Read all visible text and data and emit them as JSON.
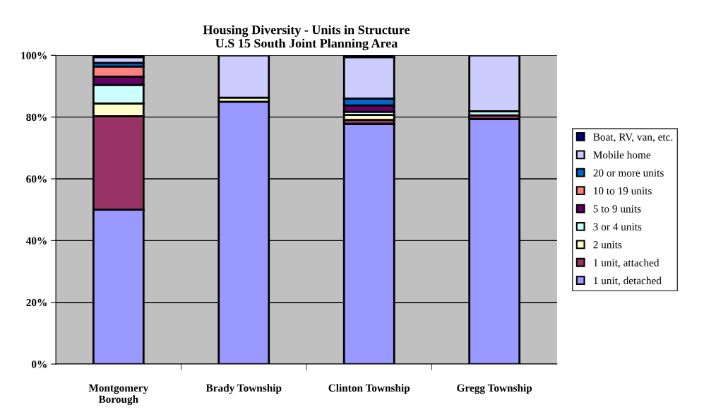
{
  "chart_data": {
    "type": "bar",
    "stacked": true,
    "title": "Housing Diversity - Units in Structure\nU.S 15 South Joint Planning Area",
    "categories": [
      "Montgomery\nBorough",
      "Brady Township",
      "Clinton Township",
      "Gregg Township"
    ],
    "series": [
      {
        "name": "1 unit, detached",
        "color": "#9999ff",
        "values": [
          50,
          85,
          77.8,
          79.4
        ]
      },
      {
        "name": "1 unit, attached",
        "color": "#993366",
        "values": [
          30.3,
          null,
          1.3,
          1.2
        ]
      },
      {
        "name": "2 units",
        "color": "#ffffcc",
        "values": [
          4.1,
          1.3,
          1.6,
          null
        ]
      },
      {
        "name": "3 or 4 units",
        "color": "#ccffff",
        "values": [
          6,
          null,
          1,
          1.3
        ]
      },
      {
        "name": "5 to 9 units",
        "color": "#660066",
        "values": [
          2.7,
          null,
          2.1,
          null
        ]
      },
      {
        "name": "10 to 19 units",
        "color": "#ff8080",
        "values": [
          3.3,
          null,
          null,
          null
        ]
      },
      {
        "name": "20 or more units",
        "color": "#0066cc",
        "values": [
          1.2,
          null,
          2.2,
          null
        ]
      },
      {
        "name": "Mobile home",
        "color": "#ccccff",
        "values": [
          1.8,
          13.7,
          13.4,
          18.1
        ]
      },
      {
        "name": "Boat, RV, van, etc.",
        "color": "#000080",
        "values": [
          0.6,
          null,
          0.6,
          null
        ]
      }
    ],
    "ylim": [
      0,
      100
    ],
    "yticks": [
      {
        "value": 0,
        "label": "0%"
      },
      {
        "value": 20,
        "label": "20%"
      },
      {
        "value": 40,
        "label": "40%"
      },
      {
        "value": 60,
        "label": "60%"
      },
      {
        "value": 80,
        "label": "80%"
      },
      {
        "value": 100,
        "label": "100%"
      }
    ],
    "grid": "y",
    "legend": "right"
  }
}
